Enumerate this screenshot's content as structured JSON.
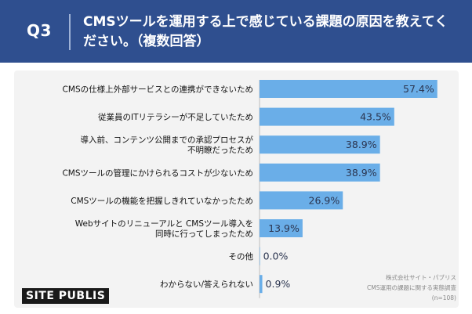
{
  "header": {
    "q_label": "Q3",
    "question": "CMSツールを運用する上で感じている課題の原因を教えてください。（複数回答）"
  },
  "source": {
    "line1": "株式会社サイト・パブリス",
    "line2": "CMS運用の課題に関する実態調査",
    "line3": "(n=108)"
  },
  "logo": {
    "text": "SITE PUBLIS"
  },
  "colors": {
    "header_bg": "#2f4f8f",
    "bar": "#6aaee8",
    "panel_bg": "#f3f3f3"
  },
  "chart_data": {
    "type": "bar",
    "orientation": "horizontal",
    "categories": [
      [
        "CMSの仕様上外部サービスとの連携ができないため"
      ],
      [
        "従業員のITリテラシーが不足していたため"
      ],
      [
        "導入前、コンテンツ公開までの承認プロセスが",
        "不明瞭だったため"
      ],
      [
        "CMSツールの管理にかけられるコストが少ないため"
      ],
      [
        "CMSツールの機能を把握しきれていなかったため"
      ],
      [
        "Webサイトのリニューアルと CMSツール導入を",
        "同時に行ってしまったため"
      ],
      [
        "その他"
      ],
      [
        "わからない/答えられない"
      ]
    ],
    "values": [
      57.4,
      43.5,
      38.9,
      38.9,
      26.9,
      13.9,
      0.0,
      0.9
    ],
    "value_labels": [
      "57.4%",
      "43.5%",
      "38.9%",
      "38.9%",
      "26.9%",
      "13.9%",
      "0.0%",
      "0.9%"
    ],
    "xlim": [
      0,
      60
    ]
  }
}
